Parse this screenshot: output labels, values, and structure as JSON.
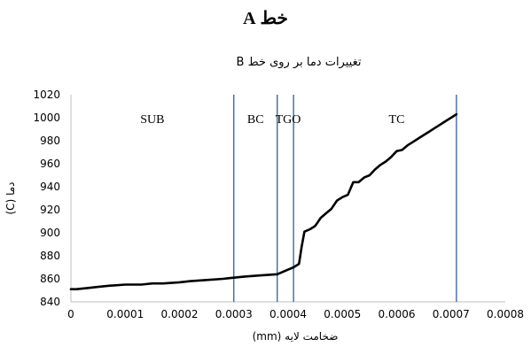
{
  "page_title": "خط A",
  "chart_data": {
    "type": "line",
    "title": "تغییرات دما بر روی خط B",
    "xlabel": "ضخامت لایه (mm)",
    "ylabel": "دما (C)",
    "xlim": [
      0,
      0.0008
    ],
    "ylim": [
      840,
      1020
    ],
    "x_ticks": [
      "0",
      "0.0001",
      "0.0002",
      "0.0003",
      "0.0004",
      "0.0005",
      "0.0006",
      "0.0007",
      "0.0008"
    ],
    "y_ticks": [
      "840",
      "860",
      "880",
      "900",
      "920",
      "940",
      "960",
      "980",
      "1000",
      "1020"
    ],
    "grid": false,
    "legend": "none",
    "line_color": "#000000",
    "divider_color": "#2e5d9b",
    "boundaries": [
      0.0003,
      0.00038,
      0.00041,
      0.00071
    ],
    "regions": [
      {
        "label": "SUB",
        "x": 0.00015
      },
      {
        "label": "BC",
        "x": 0.00034
      },
      {
        "label": "TGO",
        "x": 0.0004
      },
      {
        "label": "TC",
        "x": 0.0006
      }
    ],
    "series": [
      {
        "x": [
          0,
          1e-05,
          3e-05,
          5e-05,
          7e-05,
          0.0001,
          0.00013,
          0.00015,
          0.00017,
          0.0002,
          0.00022,
          0.00025,
          0.00028,
          0.0003,
          0.00032,
          0.00035,
          0.00038,
          0.0004,
          0.00041,
          0.00042,
          0.000425,
          0.00043,
          0.00044,
          0.00045,
          0.00046,
          0.00047,
          0.00048,
          0.00049,
          0.0005,
          0.00051,
          0.00052,
          0.00053,
          0.00054,
          0.00055,
          0.00056,
          0.00057,
          0.00058,
          0.00059,
          0.0006,
          0.00061,
          0.00062,
          0.00063,
          0.00064,
          0.00065,
          0.00066,
          0.00067,
          0.00068,
          0.00069,
          0.0007,
          0.00071
        ],
        "values": [
          851,
          851,
          852,
          853,
          854,
          855,
          855,
          856,
          856,
          857,
          858,
          859,
          860,
          861,
          862,
          863,
          864,
          868,
          870,
          873,
          888,
          901,
          903,
          906,
          913,
          917,
          921,
          928,
          931,
          933,
          944,
          944,
          948,
          950,
          955,
          959,
          962,
          966,
          971,
          972,
          976,
          979,
          982,
          985,
          988,
          991,
          994,
          997,
          1000,
          1003
        ]
      }
    ]
  }
}
